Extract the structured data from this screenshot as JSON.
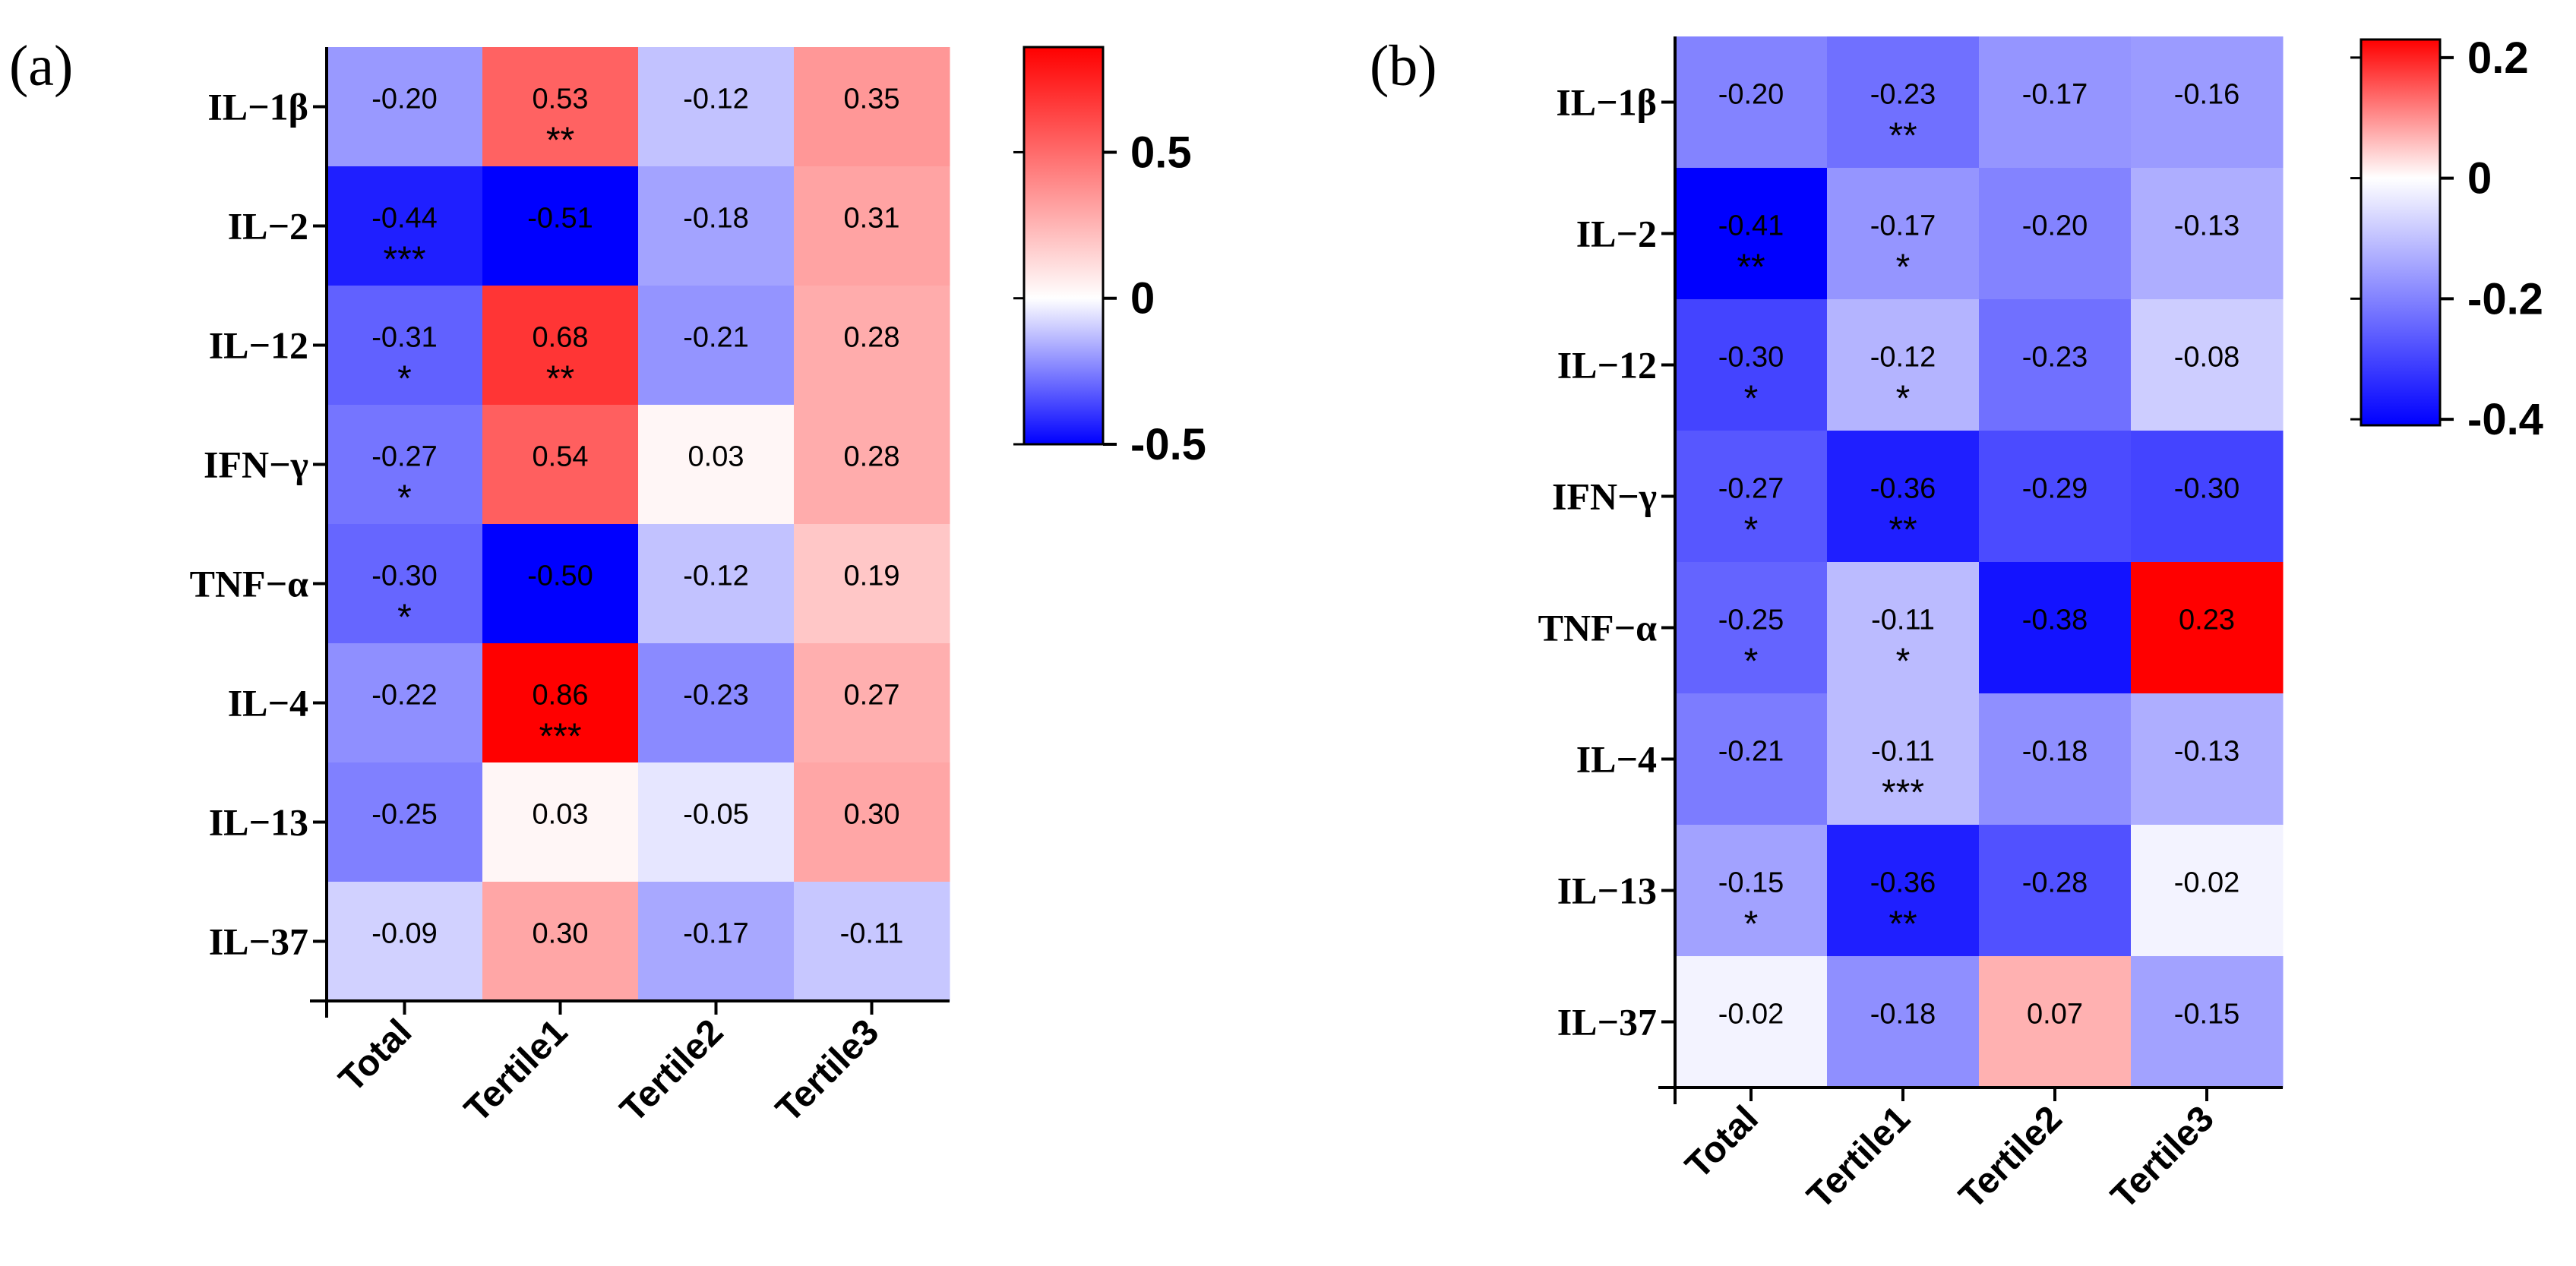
{
  "chart_data": [
    {
      "type": "heatmap",
      "panel_label": "(a)",
      "rows": [
        "IL−1β",
        "IL−2",
        "IL−12",
        "IFN−γ",
        "TNF−α",
        "IL−4",
        "IL−13",
        "IL−37"
      ],
      "columns": [
        "Total",
        "Tertile1",
        "Tertile2",
        "Tertile3"
      ],
      "values": [
        [
          -0.2,
          0.53,
          -0.12,
          0.35
        ],
        [
          -0.44,
          -0.51,
          -0.18,
          0.31
        ],
        [
          -0.31,
          0.68,
          -0.21,
          0.28
        ],
        [
          -0.27,
          0.54,
          0.03,
          0.28
        ],
        [
          -0.3,
          -0.5,
          -0.12,
          0.19
        ],
        [
          -0.22,
          0.86,
          -0.23,
          0.27
        ],
        [
          -0.25,
          0.03,
          -0.05,
          0.3
        ],
        [
          -0.09,
          0.3,
          -0.17,
          -0.11
        ]
      ],
      "value_labels": [
        [
          "-0.20",
          "0.53",
          "-0.12",
          "0.35"
        ],
        [
          "-0.44",
          "-0.51",
          "-0.18",
          "0.31"
        ],
        [
          "-0.31",
          "0.68",
          "-0.21",
          "0.28"
        ],
        [
          "-0.27",
          "0.54",
          "0.03",
          "0.28"
        ],
        [
          "-0.30",
          "-0.50",
          "-0.12",
          "0.19"
        ],
        [
          "-0.22",
          "0.86",
          "-0.23",
          "0.27"
        ],
        [
          "-0.25",
          "0.03",
          "-0.05",
          "0.30"
        ],
        [
          "-0.09",
          "0.30",
          "-0.17",
          "-0.11"
        ]
      ],
      "significance": [
        [
          "",
          "**",
          "",
          ""
        ],
        [
          "***",
          "",
          "",
          ""
        ],
        [
          "*",
          "**",
          "",
          ""
        ],
        [
          "*",
          "",
          "",
          ""
        ],
        [
          "*",
          "",
          "",
          ""
        ],
        [
          "",
          "***",
          "",
          ""
        ],
        [
          "",
          "",
          "",
          ""
        ],
        [
          "",
          "",
          "",
          ""
        ]
      ],
      "colorbar": {
        "min": -0.5,
        "max": 0.86,
        "ticks": [
          0.5,
          0,
          -0.5
        ],
        "tick_labels": [
          "0.5",
          "0",
          "-0.5"
        ],
        "low_color": "#0000ff",
        "mid_color": "#ffffff",
        "high_color": "#ff0000"
      }
    },
    {
      "type": "heatmap",
      "panel_label": "(b)",
      "rows": [
        "IL−1β",
        "IL−2",
        "IL−12",
        "IFN−γ",
        "TNF−α",
        "IL−4",
        "IL−13",
        "IL−37"
      ],
      "columns": [
        "Total",
        "Tertile1",
        "Tertile2",
        "Tertile3"
      ],
      "values": [
        [
          -0.2,
          -0.23,
          -0.17,
          -0.16
        ],
        [
          -0.41,
          -0.17,
          -0.2,
          -0.13
        ],
        [
          -0.3,
          -0.12,
          -0.23,
          -0.08
        ],
        [
          -0.27,
          -0.36,
          -0.29,
          -0.3
        ],
        [
          -0.25,
          -0.11,
          -0.38,
          0.23
        ],
        [
          -0.21,
          -0.11,
          -0.18,
          -0.13
        ],
        [
          -0.15,
          -0.36,
          -0.28,
          -0.02
        ],
        [
          -0.02,
          -0.18,
          0.07,
          -0.15
        ]
      ],
      "value_labels": [
        [
          "-0.20",
          "-0.23",
          "-0.17",
          "-0.16"
        ],
        [
          "-0.41",
          "-0.17",
          "-0.20",
          "-0.13"
        ],
        [
          "-0.30",
          "-0.12",
          "-0.23",
          "-0.08"
        ],
        [
          "-0.27",
          "-0.36",
          "-0.29",
          "-0.30"
        ],
        [
          "-0.25",
          "-0.11",
          "-0.38",
          "0.23"
        ],
        [
          "-0.21",
          "-0.11",
          "-0.18",
          "-0.13"
        ],
        [
          "-0.15",
          "-0.36",
          "-0.28",
          "-0.02"
        ],
        [
          "-0.02",
          "-0.18",
          "0.07",
          "-0.15"
        ]
      ],
      "significance": [
        [
          "",
          "**",
          "",
          ""
        ],
        [
          "**",
          "*",
          "",
          ""
        ],
        [
          "*",
          "*",
          "",
          ""
        ],
        [
          "*",
          "**",
          "",
          ""
        ],
        [
          "*",
          "*",
          "",
          ""
        ],
        [
          "",
          "***",
          "",
          ""
        ],
        [
          "*",
          "**",
          "",
          ""
        ],
        [
          "",
          "",
          "",
          ""
        ]
      ],
      "colorbar": {
        "min": -0.41,
        "max": 0.23,
        "ticks": [
          0.2,
          0,
          -0.2,
          -0.4
        ],
        "tick_labels": [
          "0.2",
          "0",
          "-0.2",
          "-0.4"
        ],
        "low_color": "#0000ff",
        "mid_color": "#ffffff",
        "high_color": "#ff0000"
      }
    }
  ]
}
